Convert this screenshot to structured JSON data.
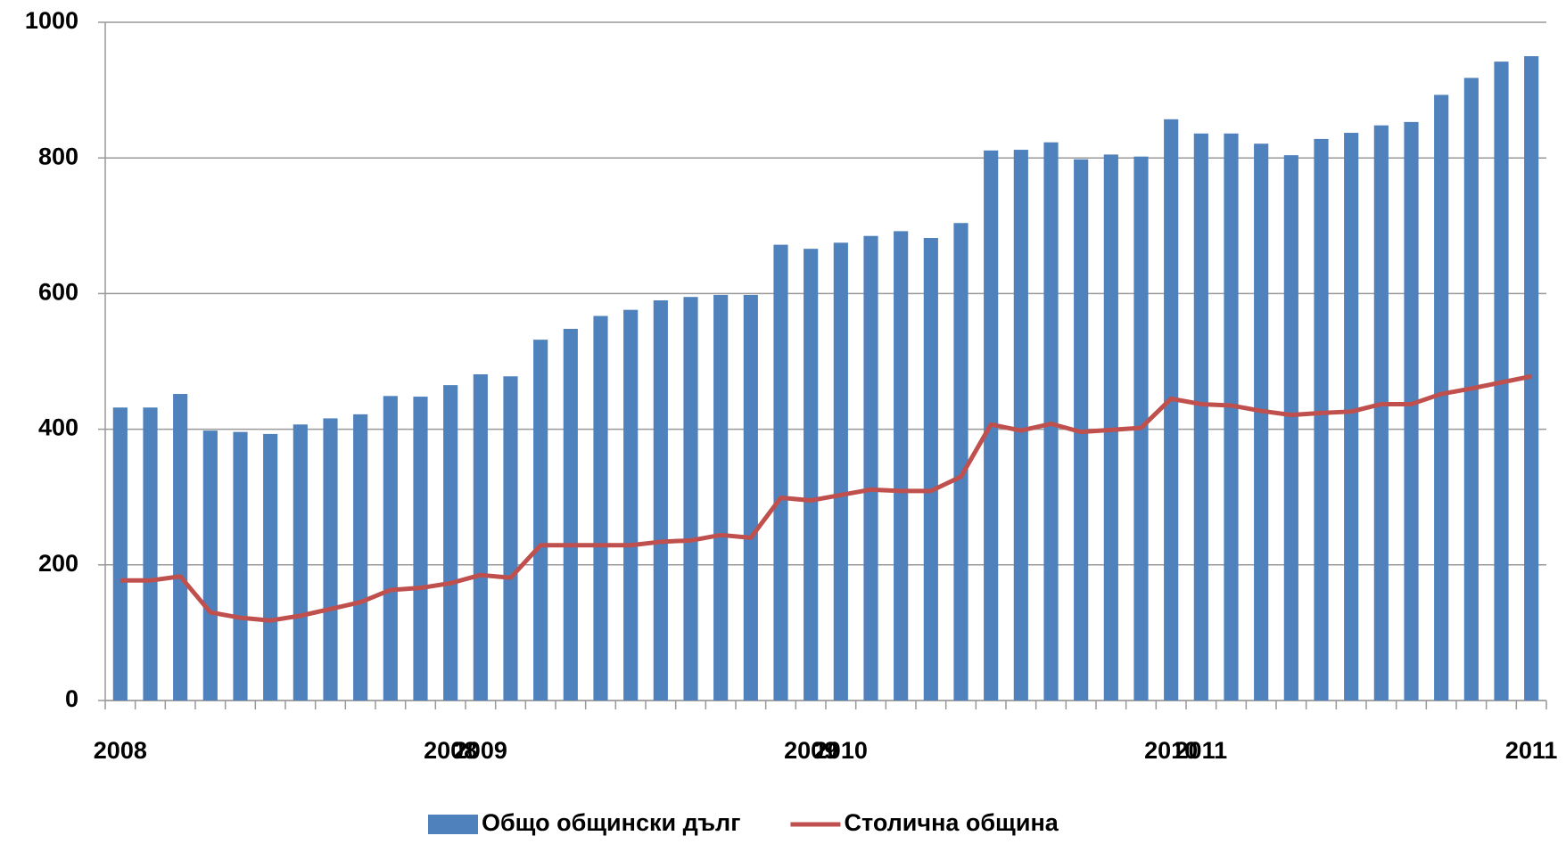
{
  "chart_data": {
    "type": "bar-line",
    "categories": [
      "2008",
      null,
      null,
      null,
      null,
      null,
      null,
      null,
      null,
      null,
      null,
      "2008",
      "2009",
      null,
      null,
      null,
      null,
      null,
      null,
      null,
      null,
      null,
      null,
      "2009",
      "2010",
      null,
      null,
      null,
      null,
      null,
      null,
      null,
      null,
      null,
      null,
      "2010",
      "2011",
      null,
      null,
      null,
      null,
      null,
      null,
      null,
      null,
      null,
      null,
      "2011"
    ],
    "series": [
      {
        "name": "Общо общински дълг",
        "type": "bar",
        "color": "#4f81bd",
        "values": [
          432,
          432,
          452,
          398,
          396,
          393,
          407,
          416,
          422,
          449,
          448,
          465,
          481,
          478,
          532,
          548,
          567,
          576,
          590,
          595,
          598,
          598,
          672,
          666,
          675,
          685,
          692,
          682,
          704,
          811,
          812,
          823,
          798,
          805,
          802,
          857,
          836,
          836,
          821,
          804,
          828,
          837,
          848,
          853,
          893,
          918,
          942,
          950
        ]
      },
      {
        "name": "Столична община",
        "type": "line",
        "color": "#c0504d",
        "values": [
          177,
          177,
          183,
          130,
          122,
          118,
          125,
          135,
          145,
          163,
          166,
          173,
          185,
          181,
          229,
          229,
          229,
          229,
          234,
          236,
          244,
          240,
          299,
          295,
          303,
          311,
          309,
          309,
          330,
          407,
          398,
          408,
          396,
          399,
          402,
          445,
          437,
          435,
          427,
          421,
          424,
          426,
          437,
          437,
          452,
          460,
          469,
          478
        ]
      }
    ],
    "ylim": [
      0,
      1000
    ],
    "yticks": [
      0,
      200,
      400,
      600,
      800,
      1000
    ],
    "grid": true,
    "legend": "bottom"
  }
}
